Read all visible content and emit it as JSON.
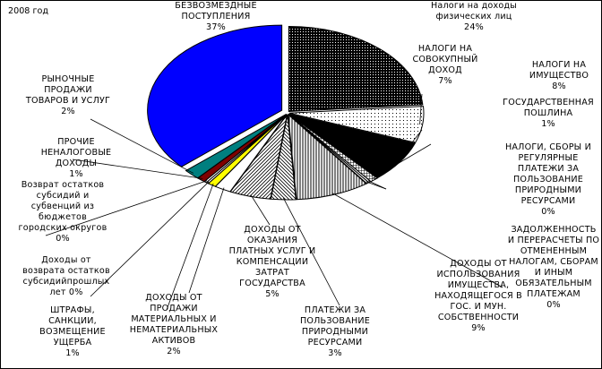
{
  "chart_data": {
    "type": "pie",
    "title": "2008 год",
    "slices": [
      {
        "label": "Налоги на доходы\nфизических лиц",
        "percent": "24%",
        "value": 24,
        "fill": "dots-dark"
      },
      {
        "label": "НАЛОГИ НА\nСОВОКУПНЫЙ\nДОХОД",
        "percent": "7%",
        "value": 7,
        "fill": "dots-light"
      },
      {
        "label": "НАЛОГИ НА\nИМУЩЕСТВО",
        "percent": "8%",
        "value": 8,
        "fill": "solid-black"
      },
      {
        "label": "ГОСУДАРСТВЕННАЯ\nПОШЛИНА",
        "percent": "1%",
        "value": 1,
        "fill": "grid"
      },
      {
        "label": "НАЛОГИ, СБОРЫ И\nРЕГУЛЯРНЫЕ\nПЛАТЕЖИ ЗА\nПОЛЬЗОВАНИЕ\nПРИРОДНЫМИ\nРЕСУРСАМИ",
        "percent": "0%",
        "value": 0.3,
        "fill": "white"
      },
      {
        "label": "ЗАДОЛЖЕННОСТЬ\nИ ПЕРЕРАСЧЕТЫ ПО\nОТМЕНЕННЫМ\nНАЛОГАМ, СБОРАМ\nИ ИНЫМ\nОБЯЗАТЕЛЬНЫМ\nПЛАТЕЖАМ",
        "percent": "0%",
        "value": 0.3,
        "fill": "white"
      },
      {
        "label": "ДОХОДЫ ОТ\nИСПОЛЬЗОВАНИЯ\nИМУЩЕСТВА,\nНАХОДЯЩЕГОСЯ В\nГОС. И МУН.\nСОБСТВЕННОСТИ",
        "percent": "9%",
        "value": 9,
        "fill": "vertical"
      },
      {
        "label": "ПЛАТЕЖИ ЗА\nПОЛЬЗОВАНИЕ\nПРИРОДНЫМИ\nРЕСУРСАМИ",
        "percent": "3%",
        "value": 3,
        "fill": "diag-left"
      },
      {
        "label": "ДОХОДЫ ОТ\nОКАЗАНИЯ\nПЛАТНЫХ УСЛУГ И\nКОМПЕНСАЦИИ\nЗАТРАТ\nГОСУДАРСТВА",
        "percent": "5%",
        "value": 5,
        "fill": "diag-right"
      },
      {
        "label": "ДОХОДЫ ОТ\nПРОДАЖИ\nМАТЕРИАЛЬНЫХ И\nНЕМАТЕРИАЛЬНЫХ\nАКТИВОВ",
        "percent": "2%",
        "value": 2,
        "fill": "white"
      },
      {
        "label": "ШТРАФЫ,\nСАНКЦИИ,\nВОЗМЕЩЕНИЕ\nУЩЕРБА",
        "percent": "1%",
        "value": 1,
        "fill": "yellow"
      },
      {
        "label": "Доходы от\nвозврата остатков\nсубсидийпрошлых\nлет",
        "percent": "0%",
        "value": 0.3,
        "fill": "white"
      },
      {
        "label": "Возврат остатков\nсубсидий и\nсубвенций из\nбюджетов\nгородских округов",
        "percent": "0%",
        "value": 0.3,
        "fill": "white"
      },
      {
        "label": "ПРОЧИЕ\nНЕНАЛОГОВЫЕ\nДОХОДЫ",
        "percent": "1%",
        "value": 1,
        "fill": "darkred"
      },
      {
        "label": "РЫНОЧНЫЕ\nПРОДАЖИ\nТОВАРОВ И УСЛУГ",
        "percent": "2%",
        "value": 2,
        "fill": "teal"
      },
      {
        "label": "БЕЗВОЗМЕЗДНЫЕ\nПОСТУПЛЕНИЯ",
        "percent": "37%",
        "value": 37,
        "fill": "blue"
      }
    ],
    "colors": {
      "blue": "#0000ff",
      "teal": "#007f7f",
      "darkred": "#800000",
      "yellow": "#ffff00",
      "black": "#000000"
    }
  }
}
